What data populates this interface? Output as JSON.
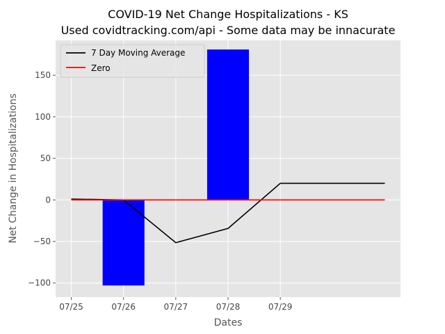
{
  "chart_data": {
    "type": "bar",
    "title": "COVID-19 Net Change Hospitalizations - KS",
    "subtitle": "Used covidtracking.com/api - Some data may be innacurate",
    "xlabel": "Dates",
    "ylabel": "Net Change in Hospitalizations",
    "x_tick_labels": [
      "07/25",
      "07/26",
      "07/27",
      "07/28",
      "07/29"
    ],
    "y_ticks": [
      -100,
      -50,
      0,
      50,
      100,
      150
    ],
    "xlim": [
      -0.3,
      6.3
    ],
    "ylim": [
      -117,
      192
    ],
    "grid": true,
    "legend_position": "top-left",
    "bars": {
      "color": "#0000ff",
      "width": 0.8,
      "x": [
        1,
        3
      ],
      "values": [
        -103,
        181
      ]
    },
    "series": [
      {
        "name": "7 Day Moving Average",
        "type": "line",
        "color": "#000000",
        "x": [
          0,
          1,
          2,
          3,
          4,
          5,
          6
        ],
        "values": [
          1,
          0,
          -51.5,
          -34.3,
          20,
          20,
          20
        ]
      },
      {
        "name": "Zero",
        "type": "line",
        "color": "#ff0000",
        "x": [
          0,
          1,
          2,
          3,
          4,
          5,
          6
        ],
        "values": [
          0,
          0,
          0,
          0,
          0,
          0,
          0
        ]
      }
    ]
  }
}
